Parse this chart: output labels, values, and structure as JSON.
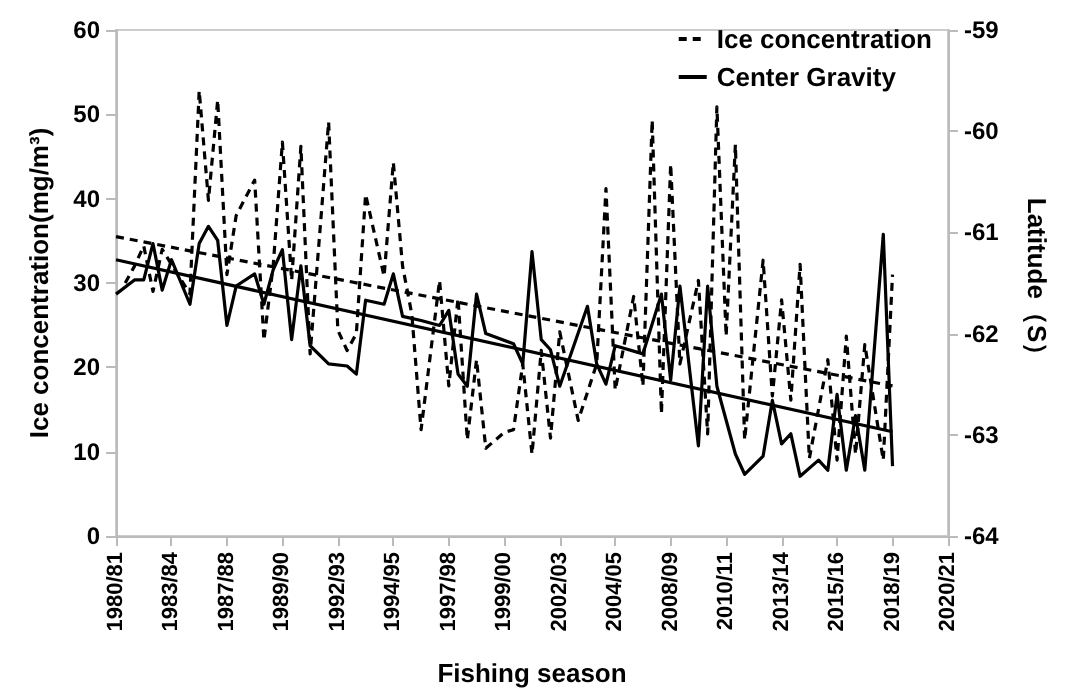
{
  "chart_data": {
    "type": "line",
    "xlabel": "Fishing season",
    "ylabel": "Ice concentration(mg/m³)",
    "y2label": "Latitude（S）",
    "categories": [
      "1980/81",
      null,
      null,
      null,
      null,
      null,
      "1983/84",
      null,
      null,
      null,
      null,
      null,
      "1987/88",
      null,
      null,
      null,
      null,
      null,
      "1989/90",
      null,
      null,
      null,
      null,
      null,
      "1992/93",
      null,
      null,
      null,
      null,
      null,
      "1994/95",
      null,
      null,
      null,
      null,
      null,
      "1997/98",
      null,
      null,
      null,
      null,
      null,
      "1999/00",
      null,
      null,
      null,
      null,
      null,
      "2002/03",
      null,
      null,
      null,
      null,
      null,
      "2004/05",
      null,
      null,
      null,
      null,
      null,
      "2008/09",
      null,
      null,
      null,
      null,
      null,
      "2010/11",
      null,
      null,
      null,
      null,
      null,
      "2013/14",
      null,
      null,
      null,
      null,
      null,
      "2015/16",
      null,
      null,
      null,
      null,
      null,
      "2018/19",
      null,
      null,
      null,
      null,
      null,
      "2020/21"
    ],
    "ylim": [
      0,
      60
    ],
    "yticks": [
      0,
      10,
      20,
      30,
      40,
      50,
      60
    ],
    "y2lim": [
      -64,
      -59
    ],
    "y2ticks": [
      -64,
      -63,
      -62,
      -61,
      -60,
      -59
    ],
    "grid": false,
    "legend": "top right",
    "marker": "none",
    "series": [
      {
        "name": "Ice concentration",
        "color": "#000000",
        "line_style": "dashed",
        "values": [
          null,
          30,
          32,
          34.4,
          29,
          34,
          32.2,
          null,
          28.7,
          52.8,
          39.8,
          51.7,
          31,
          38,
          null,
          42.2,
          23.2,
          32,
          46.7,
          30.3,
          46.2,
          21.6,
          null,
          49.1,
          24.4,
          22,
          24,
          40.5,
          null,
          30.8,
          44.3,
          32,
          26.3,
          12.6,
          null,
          30.3,
          17.8,
          28.2,
          11.4,
          20.9,
          10.4,
          null,
          12.3,
          12.6,
          20.4,
          9.7,
          22,
          11.6,
          24.2,
          null,
          13.7,
          null,
          20.4,
          41.2,
          17.3,
          null,
          28.4,
          17.8,
          49.3,
          14.5,
          44.1,
          20.4,
          null,
          30.3,
          12.1,
          50.9,
          23.7,
          46.4,
          11.4,
          null,
          32.7,
          16.6,
          28,
          16.1,
          32.2,
          9.2,
          null,
          20.9,
          9,
          23.7,
          9.7,
          22.7,
          null,
          9,
          31,
          null,
          null,
          null,
          null,
          null,
          null
        ]
      },
      {
        "name": "Center Gravity",
        "color": "#000000",
        "line_style": "solid",
        "axis": "y2",
        "values": [
          -61.61,
          null,
          -61.47,
          -61.47,
          -61.11,
          -61.57,
          -61.27,
          null,
          -61.71,
          -61.11,
          -60.94,
          -61.08,
          -61.92,
          -61.53,
          null,
          -61.41,
          -61.71,
          -61.37,
          -61.17,
          -62.06,
          -61.33,
          -62.12,
          null,
          -62.3,
          null,
          -62.32,
          -62.4,
          -61.67,
          null,
          -61.71,
          -61.41,
          -61.83,
          null,
          -61.87,
          null,
          -61.92,
          -61.77,
          -62.4,
          -62.52,
          -61.61,
          -62.0,
          null,
          null,
          -62.1,
          -62.3,
          -61.19,
          -62.06,
          -62.16,
          -62.52,
          null,
          null,
          -61.73,
          -62.3,
          -62.5,
          -62.12,
          null,
          null,
          -62.2,
          null,
          -61.61,
          -62.46,
          -61.53,
          null,
          -63.11,
          -61.53,
          -62.52,
          null,
          -63.19,
          -63.39,
          null,
          -63.21,
          -62.66,
          -63.09,
          -62.99,
          -63.41,
          null,
          -63.25,
          -63.35,
          -62.6,
          -63.35,
          -62.81,
          -63.35,
          null,
          -61.02,
          -63.31,
          null,
          null,
          null,
          null,
          null,
          null
        ]
      },
      {
        "color": "#000000",
        "line_style": "dashed",
        "values": [
          35.5,
          null,
          null,
          null,
          null,
          null,
          null,
          null,
          null,
          null,
          null,
          null,
          null,
          null,
          null,
          null,
          null,
          null,
          null,
          null,
          null,
          null,
          null,
          null,
          null,
          null,
          null,
          null,
          null,
          null,
          null,
          null,
          null,
          null,
          null,
          null,
          null,
          null,
          null,
          null,
          null,
          null,
          null,
          null,
          null,
          null,
          null,
          null,
          null,
          null,
          null,
          null,
          null,
          null,
          null,
          null,
          null,
          null,
          null,
          null,
          null,
          null,
          null,
          null,
          null,
          null,
          null,
          null,
          null,
          null,
          null,
          null,
          null,
          null,
          null,
          null,
          null,
          null,
          null,
          null,
          null,
          null,
          null,
          null,
          17.8,
          null,
          null,
          null,
          null,
          null,
          null
        ]
      },
      {
        "color": "#000000",
        "line_style": "solid",
        "axis": "y2",
        "values": [
          -61.27,
          null,
          null,
          null,
          null,
          null,
          null,
          null,
          null,
          null,
          null,
          null,
          null,
          null,
          null,
          null,
          null,
          null,
          null,
          null,
          null,
          null,
          null,
          null,
          null,
          null,
          null,
          null,
          null,
          null,
          null,
          null,
          null,
          null,
          null,
          null,
          null,
          null,
          null,
          null,
          null,
          null,
          null,
          null,
          null,
          null,
          null,
          null,
          null,
          null,
          null,
          null,
          null,
          null,
          null,
          null,
          null,
          null,
          null,
          null,
          null,
          null,
          null,
          null,
          null,
          null,
          null,
          null,
          null,
          null,
          null,
          null,
          null,
          null,
          null,
          null,
          null,
          null,
          null,
          null,
          null,
          null,
          null,
          null,
          -62.97,
          null,
          null,
          null,
          null,
          null,
          null
        ]
      }
    ]
  }
}
